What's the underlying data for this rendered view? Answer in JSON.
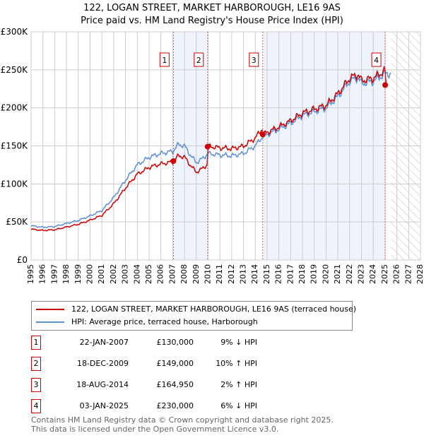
{
  "chart_data": {
    "type": "line",
    "title": "122, LOGAN STREET, MARKET HARBOROUGH, LE16 9AS",
    "subtitle": "Price paid vs. HM Land Registry's House Price Index (HPI)",
    "xlim": [
      1995,
      2028
    ],
    "ylim": [
      0,
      300000
    ],
    "y_ticks": [
      {
        "v": 0,
        "label": "£0"
      },
      {
        "v": 50000,
        "label": "£50K"
      },
      {
        "v": 100000,
        "label": "£100K"
      },
      {
        "v": 150000,
        "label": "£150K"
      },
      {
        "v": 200000,
        "label": "£200K"
      },
      {
        "v": 250000,
        "label": "£250K"
      },
      {
        "v": 300000,
        "label": "£300K"
      }
    ],
    "x_ticks": [
      1995,
      1996,
      1997,
      1998,
      1999,
      2000,
      2001,
      2002,
      2003,
      2004,
      2005,
      2006,
      2007,
      2008,
      2009,
      2010,
      2011,
      2012,
      2013,
      2014,
      2015,
      2016,
      2017,
      2018,
      2019,
      2020,
      2021,
      2022,
      2023,
      2024,
      2025,
      2026,
      2027,
      2028
    ],
    "hpi": {
      "name": "HPI: Average price, terraced house, Harborough",
      "color": "#5b8fd4",
      "x": [
        1995,
        1996,
        1997,
        1998,
        1999,
        2000,
        2001,
        2002,
        2003,
        2004,
        2005,
        2006,
        2007,
        2007.5,
        2008,
        2008.5,
        2009,
        2009.5,
        2010,
        2011,
        2012,
        2013,
        2014,
        2014.6,
        2015,
        2016,
        2017,
        2018,
        2019,
        2020,
        2021,
        2022,
        2022.7,
        2023,
        2024,
        2025,
        2025.5
      ],
      "y": [
        45000,
        43000,
        44000,
        48000,
        52000,
        58000,
        65000,
        82000,
        105000,
        125000,
        135000,
        140000,
        143000,
        152000,
        150000,
        138000,
        128000,
        133000,
        140000,
        138000,
        137000,
        140000,
        150000,
        162000,
        165000,
        172000,
        180000,
        190000,
        195000,
        200000,
        215000,
        235000,
        240000,
        232000,
        235000,
        245000,
        245000
      ]
    },
    "price": {
      "name": "122, LOGAN STREET, MARKET HARBOROUGH, LE16 9AS (terraced house)",
      "color": "#cc0000"
    },
    "sales": [
      {
        "n": "1",
        "date": "22-JAN-2007",
        "x": 2007.06,
        "price": 130000,
        "price_label": "£130,000",
        "hpi_label": "9% ↓ HPI"
      },
      {
        "n": "2",
        "date": "18-DEC-2009",
        "x": 2009.96,
        "price": 149000,
        "price_label": "£149,000",
        "hpi_label": "10% ↑ HPI"
      },
      {
        "n": "3",
        "date": "18-AUG-2014",
        "x": 2014.63,
        "price": 164950,
        "price_label": "£164,950",
        "hpi_label": "2% ↑ HPI"
      },
      {
        "n": "4",
        "date": "03-JAN-2025",
        "x": 2025.01,
        "price": 230000,
        "price_label": "£230,000",
        "hpi_label": "6% ↓ HPI"
      }
    ],
    "future_from": 2025.5
  },
  "legend": {
    "price": "122, LOGAN STREET, MARKET HARBOROUGH, LE16 9AS (terraced house)",
    "hpi": "HPI: Average price, terraced house, Harborough"
  },
  "footer": {
    "line1": "Contains HM Land Registry data © Crown copyright and database right 2025.",
    "line2": "This data is licensed under the Open Government Licence v3.0."
  }
}
